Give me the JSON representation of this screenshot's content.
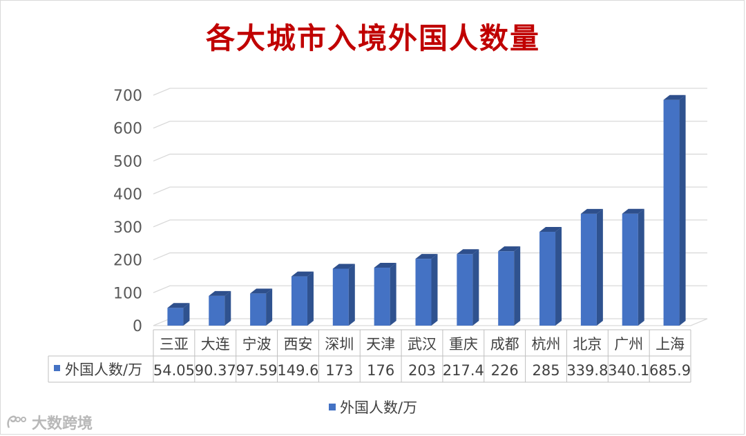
{
  "chart_data": {
    "type": "bar",
    "title": "各大城市入境外国人数量",
    "categories": [
      "三亚",
      "大连",
      "宁波",
      "西安",
      "深圳",
      "天津",
      "武汉",
      "重庆",
      "成都",
      "杭州",
      "北京",
      "广州",
      "上海"
    ],
    "series": [
      {
        "name": "外国人数/万",
        "values": [
          54.05,
          90.37,
          97.59,
          149.6,
          173,
          176,
          203,
          217.4,
          226,
          285,
          339.8,
          340.1,
          685.9
        ],
        "value_labels": [
          "54.05",
          "90.37",
          "97.59",
          "149.6",
          "173",
          "176",
          "203",
          "217.4",
          "226",
          "285",
          "339.8",
          "340.1",
          "685.9"
        ],
        "color": "#4472c4"
      }
    ],
    "ylim": [
      0,
      700
    ],
    "yticks": [
      0,
      100,
      200,
      300,
      400,
      500,
      600,
      700
    ],
    "grid": true,
    "style": "3d-column",
    "data_table": true,
    "legend_position": "bottom",
    "colors": {
      "bar_front": "#4472c4",
      "bar_side": "#2f528f",
      "bar_top": "#2e4f8c"
    }
  },
  "watermark": {
    "text": "大数跨境"
  }
}
